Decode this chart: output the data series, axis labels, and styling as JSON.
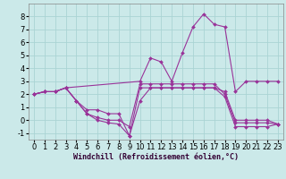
{
  "title": "",
  "xlabel": "Windchill (Refroidissement éolien,°C)",
  "background_color": "#cbe9e9",
  "grid_color": "#aad4d4",
  "line_color": "#993399",
  "xlim": [
    -0.5,
    23.5
  ],
  "ylim": [
    -1.5,
    9.0
  ],
  "yticks": [
    -1,
    0,
    1,
    2,
    3,
    4,
    5,
    6,
    7,
    8
  ],
  "xticks": [
    0,
    1,
    2,
    3,
    4,
    5,
    6,
    7,
    8,
    9,
    10,
    11,
    12,
    13,
    14,
    15,
    16,
    17,
    18,
    19,
    20,
    21,
    22,
    23
  ],
  "lines": [
    {
      "x": [
        0,
        1,
        2,
        3,
        10,
        11,
        12,
        13,
        14,
        15,
        16,
        17,
        18,
        19,
        20,
        21,
        22,
        23
      ],
      "y": [
        2.0,
        2.2,
        2.2,
        2.5,
        3.0,
        4.8,
        4.5,
        3.0,
        5.2,
        7.2,
        8.2,
        7.4,
        7.2,
        2.2,
        3.0,
        3.0,
        3.0,
        3.0
      ]
    },
    {
      "x": [
        0,
        1,
        2,
        3,
        4,
        5,
        6,
        7,
        8,
        9,
        10,
        11,
        12,
        13,
        14,
        15,
        16,
        17,
        18,
        19,
        20,
        21,
        22,
        23
      ],
      "y": [
        2.0,
        2.2,
        2.2,
        2.5,
        1.5,
        0.8,
        0.8,
        0.5,
        0.5,
        -1.2,
        1.5,
        2.5,
        2.5,
        2.5,
        2.5,
        2.5,
        2.5,
        2.5,
        2.2,
        0.0,
        0.0,
        0.0,
        0.0,
        -0.3
      ]
    },
    {
      "x": [
        0,
        1,
        2,
        3,
        4,
        5,
        6,
        7,
        8,
        9,
        10,
        11,
        12,
        13,
        14,
        15,
        16,
        17,
        18,
        19,
        20,
        21,
        22,
        23
      ],
      "y": [
        2.0,
        2.2,
        2.2,
        2.5,
        1.5,
        0.5,
        0.2,
        0.0,
        0.0,
        -0.5,
        2.8,
        2.8,
        2.8,
        2.8,
        2.8,
        2.8,
        2.8,
        2.8,
        2.0,
        -0.2,
        -0.2,
        -0.2,
        -0.2,
        -0.3
      ]
    },
    {
      "x": [
        0,
        1,
        2,
        3,
        4,
        5,
        6,
        7,
        8,
        9,
        10,
        11,
        12,
        13,
        14,
        15,
        16,
        17,
        18,
        19,
        20,
        21,
        22,
        23
      ],
      "y": [
        2.0,
        2.2,
        2.2,
        2.5,
        1.5,
        0.5,
        0.0,
        -0.2,
        -0.3,
        -1.2,
        2.5,
        2.5,
        2.5,
        2.5,
        2.5,
        2.5,
        2.5,
        2.5,
        1.8,
        -0.5,
        -0.5,
        -0.5,
        -0.5,
        -0.3
      ]
    }
  ],
  "tick_fontsize": 6,
  "xlabel_fontsize": 6,
  "marker": "D",
  "markersize": 2.0,
  "linewidth": 0.8
}
